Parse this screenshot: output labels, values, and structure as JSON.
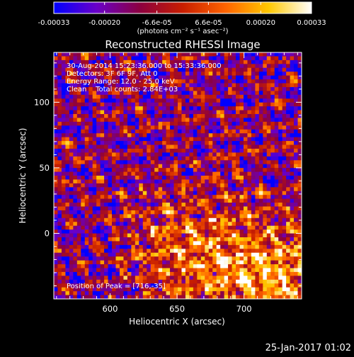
{
  "colorbar": {
    "min_label": "-0.00033",
    "tick_labels": [
      "-0.00033",
      "-0.00020",
      "-6.6e-05",
      "6.6e-05",
      "0.00020",
      "0.00033"
    ],
    "tick_values": [
      -0.00033,
      -0.0002,
      -6.6e-05,
      6.6e-05,
      0.0002,
      0.00033
    ],
    "range": [
      -0.00033,
      0.00033
    ],
    "units_label": "(photons cm⁻² s⁻¹ asec⁻²)",
    "stops": [
      "#0000ff",
      "#6a00c8",
      "#8c0040",
      "#c81e00",
      "#ff6400",
      "#ffc800",
      "#ffffff"
    ]
  },
  "chart_data": {
    "type": "heatmap",
    "title": "Reconstructed RHESSI Image",
    "xlabel": "Heliocentric X (arcsec)",
    "ylabel": "Heliocentric Y (arcsec)",
    "xlim": [
      558,
      743
    ],
    "ylim": [
      -50,
      138
    ],
    "xticks": [
      600,
      650,
      700
    ],
    "yticks": [
      0,
      50,
      100
    ],
    "grid": false,
    "info_lines": [
      "30-Aug-2014 15:23:36.000 to 15:33:36.000",
      "Detectors: 3F 6F 9F, Att 0",
      "Energy Range: 12.0 - 25.0 keV",
      "Clean    Total counts: 2.84E+03"
    ],
    "peak_label": "Position of Peak = [716,-35]",
    "peak_position": [
      716,
      -35
    ],
    "grid_cells": [
      64,
      64
    ]
  },
  "footer": {
    "timestamp": "25-Jan-2017 01:02"
  }
}
